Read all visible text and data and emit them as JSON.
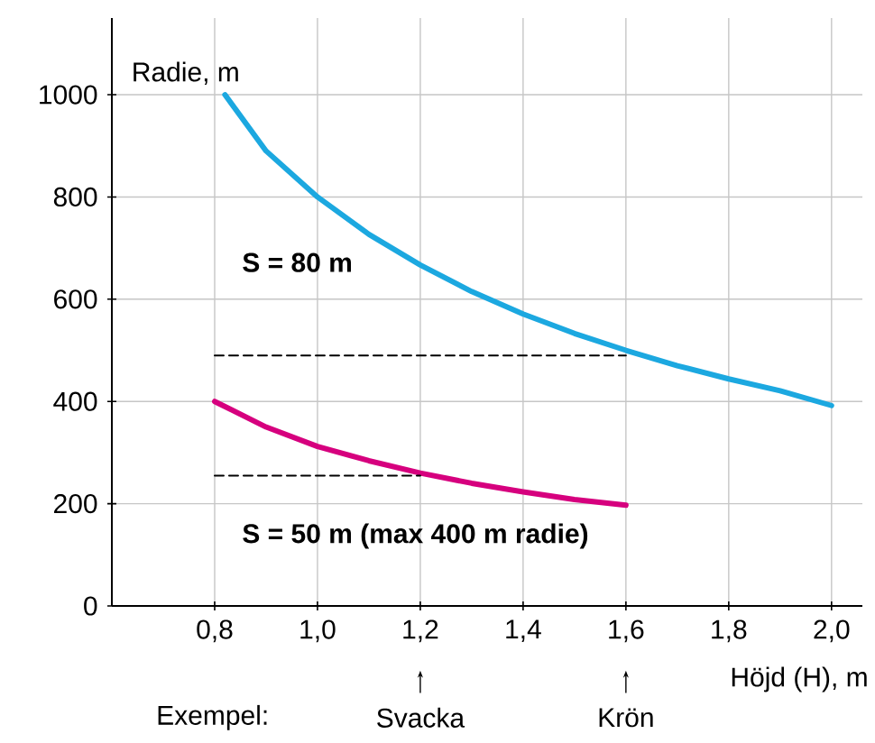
{
  "chart_data": {
    "type": "line",
    "xlabel": "Höjd (H), m",
    "ylabel": "Radie, m",
    "xlim": [
      0.6,
      2.06
    ],
    "ylim": [
      0,
      1150
    ],
    "xticks": [
      {
        "value": 0.8,
        "label": "0,8"
      },
      {
        "value": 1.0,
        "label": "1,0"
      },
      {
        "value": 1.2,
        "label": "1,2"
      },
      {
        "value": 1.4,
        "label": "1,4"
      },
      {
        "value": 1.6,
        "label": "1,6"
      },
      {
        "value": 1.8,
        "label": "1,8"
      },
      {
        "value": 2.0,
        "label": "2,0"
      }
    ],
    "yticks": [
      0,
      200,
      400,
      600,
      800,
      1000
    ],
    "grid": true,
    "marker": "none",
    "line_style": "solid",
    "series": [
      {
        "color": "#1ca8e0",
        "x": [
          0.82,
          0.9,
          1.0,
          1.1,
          1.2,
          1.3,
          1.4,
          1.5,
          1.6,
          1.7,
          1.8,
          1.9,
          2.0
        ],
        "values": [
          1000,
          890,
          800,
          727,
          667,
          615,
          571,
          533,
          500,
          470,
          444,
          421,
          392
        ]
      },
      {
        "color": "#d6007e",
        "x": [
          0.8,
          0.9,
          1.0,
          1.1,
          1.2,
          1.3,
          1.4,
          1.5,
          1.6
        ],
        "values": [
          400,
          350,
          312,
          284,
          260,
          240,
          223,
          208,
          197
        ]
      },
      {
        "color": "#000000",
        "line_style": "dashed",
        "x": [
          0.8,
          1.6
        ],
        "values": [
          490,
          490
        ]
      },
      {
        "color": "#000000",
        "line_style": "dashed",
        "x": [
          0.8,
          1.2
        ],
        "values": [
          255,
          255
        ]
      }
    ],
    "annotations": [
      "S = 80 m",
      "S = 50 m (max 400 m radie)",
      "Exempel:",
      {
        "text": "Svacka",
        "x": 1.2
      },
      {
        "text": "Krön",
        "x": 1.6
      }
    ]
  }
}
